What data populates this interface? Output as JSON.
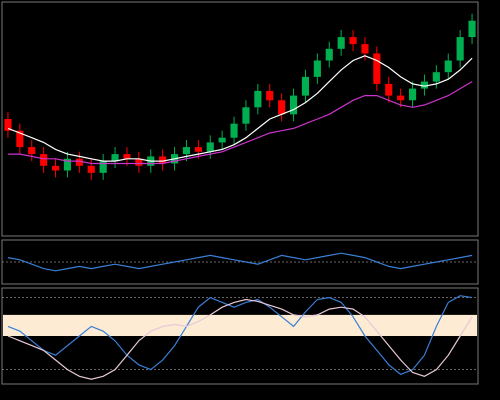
{
  "chart_data": [
    {
      "type": "candlestick",
      "up_color": "#00b050",
      "down_color": "#ff0000",
      "ylim": [
        0,
        100
      ],
      "open": [
        50,
        45,
        38,
        35,
        30,
        28,
        33,
        30,
        27,
        32,
        35,
        33,
        30,
        34,
        31,
        35,
        38,
        36,
        40,
        42,
        48,
        55,
        62,
        58,
        52,
        60,
        68,
        75,
        80,
        85,
        82,
        78,
        65,
        60,
        58,
        63,
        66,
        70,
        75,
        85
      ],
      "high": [
        53,
        48,
        41,
        38,
        33,
        36,
        36,
        33,
        35,
        38,
        38,
        36,
        37,
        37,
        38,
        41,
        41,
        43,
        45,
        51,
        58,
        65,
        65,
        61,
        63,
        71,
        78,
        83,
        88,
        88,
        85,
        81,
        68,
        63,
        66,
        69,
        73,
        78,
        88,
        95
      ],
      "low": [
        42,
        35,
        32,
        27,
        25,
        25,
        27,
        24,
        24,
        29,
        30,
        27,
        27,
        28,
        28,
        32,
        33,
        33,
        37,
        39,
        45,
        52,
        55,
        49,
        49,
        57,
        65,
        72,
        77,
        79,
        75,
        62,
        57,
        55,
        55,
        60,
        63,
        67,
        72,
        82
      ],
      "close": [
        45,
        38,
        35,
        30,
        28,
        33,
        30,
        27,
        32,
        35,
        33,
        30,
        34,
        31,
        35,
        38,
        36,
        40,
        42,
        48,
        55,
        62,
        58,
        52,
        60,
        68,
        75,
        80,
        85,
        82,
        78,
        65,
        60,
        58,
        63,
        66,
        70,
        75,
        85,
        92
      ],
      "series": [
        {
          "color": "#ffffff",
          "values": [
            46,
            44,
            42,
            40,
            37,
            35,
            34,
            33,
            32,
            32,
            33,
            33,
            32,
            32,
            33,
            34,
            35,
            36,
            37,
            39,
            42,
            46,
            50,
            52,
            54,
            57,
            61,
            66,
            71,
            75,
            77,
            75,
            72,
            68,
            65,
            64,
            65,
            67,
            71,
            76
          ]
        },
        {
          "color": "#cc33cc",
          "values": [
            35,
            35,
            34,
            33,
            33,
            32,
            32,
            31,
            31,
            31,
            31,
            31,
            31,
            31,
            32,
            33,
            34,
            35,
            36,
            38,
            40,
            42,
            44,
            45,
            46,
            48,
            50,
            52,
            55,
            58,
            60,
            60,
            58,
            56,
            55,
            56,
            58,
            60,
            63,
            66
          ]
        }
      ]
    },
    {
      "type": "line",
      "ylim": [
        -1,
        1
      ],
      "levels": [
        0
      ],
      "series": [
        {
          "color": "#3a7fd5",
          "values": [
            0.2,
            0.1,
            -0.1,
            -0.3,
            -0.4,
            -0.3,
            -0.2,
            -0.3,
            -0.2,
            -0.1,
            -0.2,
            -0.3,
            -0.2,
            -0.1,
            0,
            0.1,
            0.2,
            0.3,
            0.2,
            0.1,
            0,
            -0.1,
            0.1,
            0.3,
            0.2,
            0.1,
            0.2,
            0.3,
            0.4,
            0.3,
            0.2,
            0,
            -0.2,
            -0.3,
            -0.2,
            -0.1,
            0,
            0.1,
            0.2,
            0.3
          ]
        }
      ]
    },
    {
      "type": "line",
      "ylim": [
        0,
        100
      ],
      "levels": [
        90,
        15
      ],
      "band": [
        50,
        72
      ],
      "band_color": "#fdebd3",
      "series": [
        {
          "color": "#3a7fd5",
          "values": [
            60,
            55,
            45,
            35,
            30,
            40,
            50,
            60,
            55,
            45,
            30,
            20,
            15,
            25,
            40,
            60,
            80,
            90,
            85,
            80,
            85,
            88,
            80,
            70,
            60,
            75,
            88,
            90,
            85,
            70,
            50,
            35,
            20,
            10,
            15,
            30,
            60,
            85,
            92,
            90
          ]
        },
        {
          "color": "#e8c8d8",
          "values": [
            50,
            45,
            40,
            35,
            25,
            15,
            8,
            5,
            8,
            15,
            30,
            45,
            55,
            60,
            62,
            60,
            65,
            72,
            80,
            85,
            88,
            86,
            82,
            78,
            72,
            70,
            72,
            78,
            80,
            78,
            70,
            55,
            40,
            25,
            12,
            8,
            15,
            30,
            50,
            70
          ]
        }
      ]
    }
  ]
}
